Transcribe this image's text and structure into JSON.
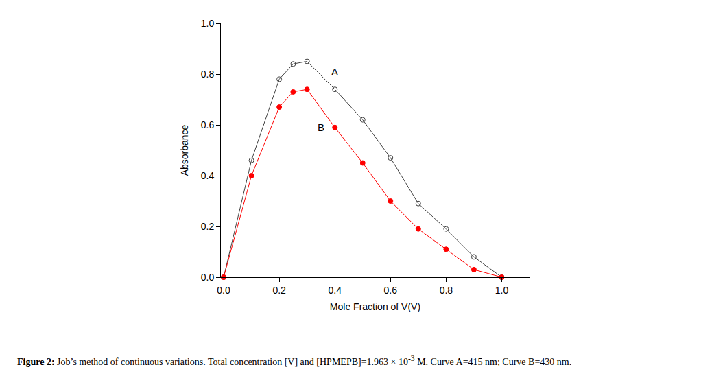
{
  "chart_data": {
    "type": "line",
    "x_label": "Mole Fraction of V(V)",
    "y_label": "Absorbance",
    "x": [
      0,
      0.1,
      0.2,
      0.25,
      0.3,
      0.4,
      0.5,
      0.6,
      0.7,
      0.8,
      0.9,
      1.0
    ],
    "series": [
      {
        "name": "A",
        "color": "#404040",
        "marker": "circle-open",
        "line_style": "solid",
        "values": [
          0,
          0.46,
          0.78,
          0.84,
          0.85,
          0.74,
          0.62,
          0.47,
          0.29,
          0.19,
          0.08,
          0
        ]
      },
      {
        "name": "B",
        "color": "#ff0000",
        "marker": "circle",
        "line_style": "solid",
        "values": [
          0,
          0.4,
          0.67,
          0.73,
          0.74,
          0.59,
          0.45,
          0.3,
          0.19,
          0.11,
          0.03,
          0
        ]
      }
    ],
    "annotations": [
      {
        "text": "A",
        "x": 0.4,
        "y": 0.81
      },
      {
        "text": "B",
        "x": 0.35,
        "y": 0.59
      }
    ],
    "xlim": [
      -0.01,
      1.1
    ],
    "xticks": [
      {
        "value": 0,
        "label": "0.0"
      },
      0.2,
      0.4,
      0.6,
      0.8,
      {
        "value": 1,
        "label": "1.0"
      }
    ],
    "ylim": [
      0,
      1.0
    ],
    "yticks": [
      {
        "value": 0,
        "label": "0.0"
      },
      0.2,
      0.4,
      0.6,
      0.8,
      {
        "value": 1,
        "label": "1.0"
      }
    ],
    "grid": false
  },
  "caption": {
    "label": "Figure 2:",
    "text_before_superscript": " Job’s method of continuous variations. Total concentration [V] and [HPMEPB]=1.963 × 10",
    "superscript": "-3",
    "text_after_superscript": " M. Curve A=415 nm; Curve B=430 nm."
  }
}
